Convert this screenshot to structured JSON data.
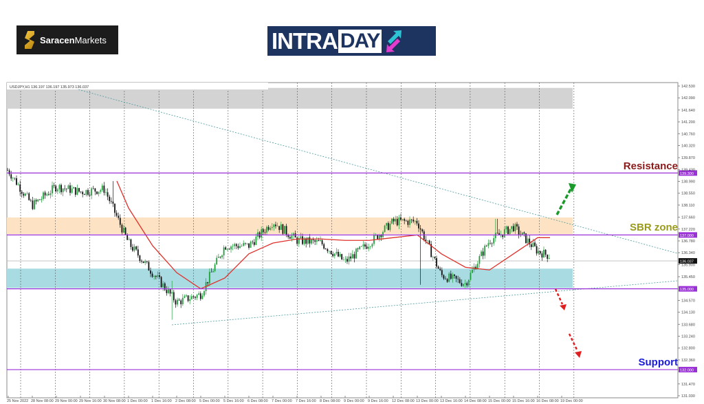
{
  "logos": {
    "saracen_bold": "Saracen",
    "saracen_light": "Markets",
    "intraday_a": "INTRA",
    "intraday_b": "DAY"
  },
  "chart_header": "USDJPY,H1  136.197 136.197 135.973 136.037",
  "chart_data": {
    "type": "candlestick",
    "symbol": "USDJPY",
    "timeframe": "H1",
    "ylim": [
      131.03,
      142.53
    ],
    "y_ticks": [
      "142.530",
      "142.090",
      "141.640",
      "141.200",
      "140.760",
      "140.320",
      "139.870",
      "139.430",
      "138.990",
      "138.550",
      "138.110",
      "137.660",
      "137.220",
      "136.780",
      "136.340",
      "135.900",
      "135.450",
      "134.570",
      "134.130",
      "133.680",
      "133.240",
      "132.800",
      "132.360",
      "131.470",
      "131.030"
    ],
    "x_ticks": [
      "25 Nov 2022",
      "28 Nov 08:00",
      "29 Nov 00:00",
      "29 Nov 16:00",
      "30 Nov 08:00",
      "1 Dec 00:00",
      "1 Dec 16:00",
      "2 Dec 08:00",
      "5 Dec 00:00",
      "5 Dec 16:00",
      "6 Dec 08:00",
      "7 Dec 00:00",
      "7 Dec 16:00",
      "8 Dec 08:00",
      "9 Dec 00:00",
      "9 Dec 16:00",
      "12 Dec 08:00",
      "13 Dec 00:00",
      "13 Dec 16:00",
      "14 Dec 08:00",
      "15 Dec 00:00",
      "15 Dec 16:00",
      "16 Dec 08:00",
      "19 Dec 00:00"
    ],
    "approx_close_at_ticks": [
      139.4,
      138.1,
      138.8,
      138.6,
      138.7,
      136.7,
      135.6,
      134.5,
      134.8,
      136.6,
      136.6,
      137.5,
      136.8,
      136.7,
      136.0,
      136.7,
      137.5,
      137.5,
      135.5,
      135.2,
      136.8,
      137.3,
      136.4,
      136.04
    ],
    "moving_average_at_ticks": [
      null,
      null,
      null,
      null,
      139.0,
      138.0,
      136.6,
      135.6,
      135.0,
      135.4,
      136.3,
      136.7,
      136.85,
      136.85,
      136.8,
      136.8,
      136.9,
      137.0,
      136.3,
      135.8,
      135.7,
      136.3,
      136.9,
      136.9
    ],
    "last_price": "136.037",
    "levels": [
      {
        "label": "Resistance",
        "price": 139.3,
        "price_label": "139.300",
        "color": "#8b1a1a"
      },
      {
        "label": "SBR zone",
        "price": 137.0,
        "price_label": "137.000",
        "color": "#9a9a1a"
      },
      {
        "label": "",
        "price": 135.0,
        "price_label": "135.000",
        "color": "#9b30d9"
      },
      {
        "label": "Support",
        "price": 132.0,
        "price_label": "132.000",
        "color": "#1a1ad9"
      }
    ],
    "zones": [
      {
        "from": 141.69,
        "to": 142.46,
        "color": "#d3d3d3"
      },
      {
        "from": 137.03,
        "to": 137.65,
        "color": "#fde3c3"
      },
      {
        "from": 135.03,
        "to": 135.75,
        "color": "#a9dbe3"
      }
    ],
    "colors": {
      "up": "#1f9e3a",
      "down": "#111111",
      "ma": "#e0302a",
      "level_line": "#9b30d9",
      "bull_arrow": "#1a9a2a",
      "bear_arrow": "#e02020"
    }
  }
}
